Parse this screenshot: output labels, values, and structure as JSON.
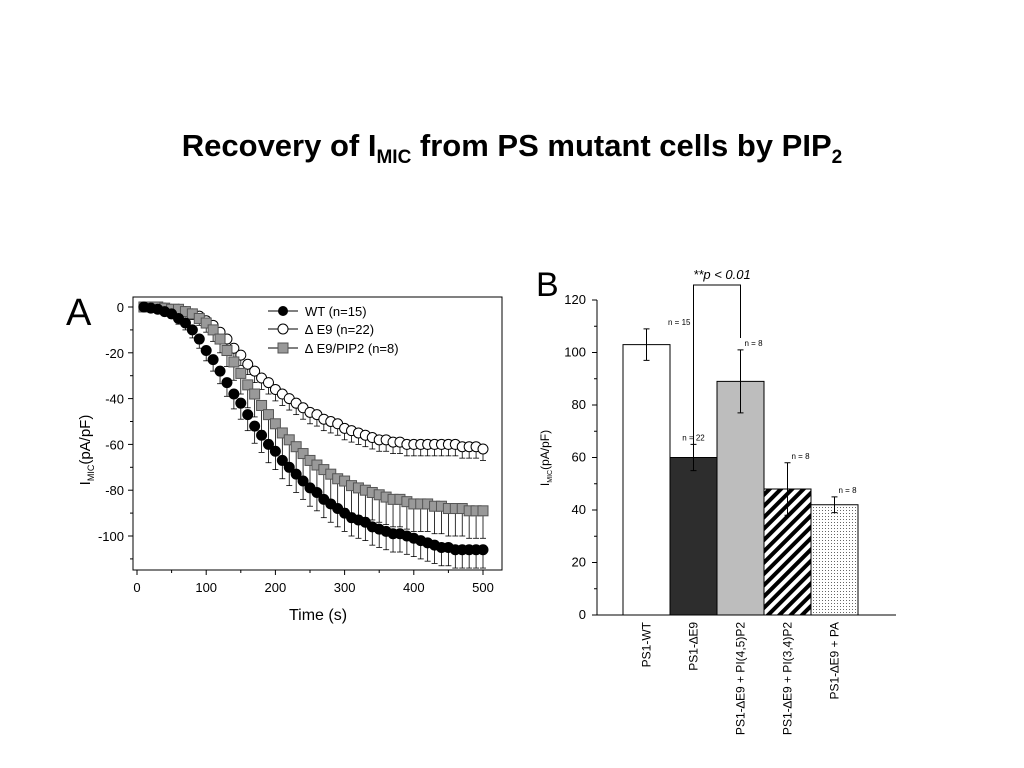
{
  "title": {
    "pre": "Recovery of I",
    "sub1": "MIC",
    "mid": " from PS mutant cells by PIP",
    "sub2": "2"
  },
  "chart_data": [
    {
      "type": "scatter",
      "panel": "A",
      "xlabel": "Time (s)",
      "ylabel_pre": "I",
      "ylabel_sub": "MIC",
      "ylabel_post": "(pA/pF)",
      "xlim": [
        0,
        500
      ],
      "ylim": [
        -112,
        2
      ],
      "xticks": [
        0,
        100,
        200,
        300,
        400,
        500
      ],
      "yticks": [
        0,
        -20,
        -40,
        -60,
        -80,
        -100
      ],
      "legend_position": "top-right",
      "series": [
        {
          "name": "WT (n=15)",
          "marker": "filled-circle",
          "color": "#000000",
          "x": [
            10,
            20,
            30,
            40,
            50,
            60,
            70,
            80,
            90,
            100,
            110,
            120,
            130,
            140,
            150,
            160,
            170,
            180,
            190,
            200,
            210,
            220,
            230,
            240,
            250,
            260,
            270,
            280,
            290,
            300,
            310,
            320,
            330,
            340,
            350,
            360,
            370,
            380,
            390,
            400,
            410,
            420,
            430,
            440,
            450,
            460,
            470,
            480,
            490,
            500
          ],
          "y": [
            0,
            -0.5,
            -1,
            -2,
            -3,
            -5,
            -7,
            -10,
            -14,
            -19,
            -23,
            -28,
            -33,
            -38,
            -42,
            -47,
            -52,
            -56,
            -60,
            -63,
            -67,
            -70,
            -73,
            -76,
            -79,
            -81,
            -84,
            -86,
            -88,
            -90,
            -92,
            -93,
            -94,
            -96,
            -97,
            -98,
            -99,
            -99,
            -100,
            -101,
            -102,
            -103,
            -104,
            -105,
            -105,
            -106,
            -106,
            -106,
            -106,
            -106
          ],
          "err": [
            0,
            0.5,
            1,
            1.5,
            2,
            2.5,
            3,
            3.5,
            4,
            4.5,
            5,
            5.5,
            6,
            6.5,
            7,
            7,
            7.5,
            7.5,
            8,
            8,
            8,
            8,
            8,
            8,
            8,
            8,
            8,
            8,
            8,
            8,
            8,
            8,
            8,
            8,
            8,
            8,
            8,
            8,
            8,
            8,
            8,
            8,
            8,
            8,
            8,
            8,
            8,
            8,
            8,
            8
          ]
        },
        {
          "name": "∆ E9 (n=22)",
          "marker": "open-circle",
          "color": "#000000",
          "x": [
            10,
            20,
            30,
            40,
            50,
            60,
            70,
            80,
            90,
            100,
            110,
            120,
            130,
            140,
            150,
            160,
            170,
            180,
            190,
            200,
            210,
            220,
            230,
            240,
            250,
            260,
            270,
            280,
            290,
            300,
            310,
            320,
            330,
            340,
            350,
            360,
            370,
            380,
            390,
            400,
            410,
            420,
            430,
            440,
            450,
            460,
            470,
            480,
            490,
            500
          ],
          "y": [
            0,
            0,
            -0.5,
            -0.5,
            -1,
            -1,
            -2,
            -3,
            -4,
            -6,
            -8,
            -11,
            -14,
            -18,
            -21,
            -25,
            -28,
            -31,
            -33,
            -36,
            -38,
            -40,
            -42,
            -44,
            -46,
            -47,
            -49,
            -50,
            -51,
            -53,
            -54,
            -55,
            -56,
            -57,
            -58,
            -58,
            -59,
            -59,
            -60,
            -60,
            -60,
            -60,
            -60,
            -60,
            -60,
            -60,
            -61,
            -61,
            -61,
            -62
          ],
          "err": [
            0,
            0,
            0.5,
            0.5,
            1,
            1,
            1.5,
            2,
            2.5,
            3,
            3,
            3.5,
            4,
            4,
            4.5,
            4.5,
            5,
            5,
            5,
            5,
            5,
            5,
            5,
            5,
            5,
            5,
            5,
            5,
            5,
            5,
            5,
            5,
            5,
            5,
            5,
            5,
            5,
            5,
            5,
            5,
            5,
            5,
            5,
            5,
            5,
            5,
            5,
            5,
            5,
            5
          ]
        },
        {
          "name": "∆ E9/PIP2 (n=8)",
          "marker": "filled-square",
          "color": "#999999",
          "x": [
            10,
            20,
            30,
            40,
            50,
            60,
            70,
            80,
            90,
            100,
            110,
            120,
            130,
            140,
            150,
            160,
            170,
            180,
            190,
            200,
            210,
            220,
            230,
            240,
            250,
            260,
            270,
            280,
            290,
            300,
            310,
            320,
            330,
            340,
            350,
            360,
            370,
            380,
            390,
            400,
            410,
            420,
            430,
            440,
            450,
            460,
            470,
            480,
            490,
            500
          ],
          "y": [
            0,
            0,
            0,
            -0.5,
            -1,
            -1,
            -2,
            -3,
            -5,
            -7,
            -10,
            -14,
            -19,
            -24,
            -29,
            -34,
            -38,
            -43,
            -47,
            -51,
            -55,
            -58,
            -61,
            -64,
            -67,
            -69,
            -71,
            -73,
            -75,
            -76,
            -78,
            -79,
            -80,
            -81,
            -82,
            -83,
            -84,
            -84,
            -85,
            -86,
            -86,
            -86,
            -87,
            -87,
            -88,
            -88,
            -88,
            -89,
            -89,
            -89
          ],
          "err": [
            0,
            0,
            0,
            0.5,
            1,
            1.5,
            2,
            2.5,
            3,
            4,
            5,
            6,
            7,
            8,
            9,
            10,
            10,
            11,
            11,
            12,
            12,
            12,
            12,
            12,
            12,
            12,
            12,
            12,
            12,
            12,
            12,
            12,
            12,
            12,
            12,
            12,
            12,
            12,
            12,
            12,
            12,
            12,
            12,
            12,
            12,
            12,
            12,
            12,
            12,
            12
          ]
        }
      ]
    },
    {
      "type": "bar",
      "panel": "B",
      "annotation": "**p < 0.01",
      "ylabel_pre": "I",
      "ylabel_sub": "MIC",
      "ylabel_post": "(pA/pF)",
      "ylim": [
        0,
        120
      ],
      "yticks": [
        0,
        20,
        40,
        60,
        80,
        100,
        120
      ],
      "categories": [
        "PS1-WT",
        "PS1-∆E9",
        "PS1-∆E9 + PI(4,5)P2",
        "PS1-∆E9 + PI(3,4)P2",
        "PS1-∆E9 + PA"
      ],
      "values": [
        103,
        60,
        89,
        48,
        42
      ],
      "errors": [
        6,
        5,
        12,
        10,
        3
      ],
      "n_labels": [
        "n = 15",
        "n = 22",
        "n = 8",
        "n = 8",
        "n = 8"
      ],
      "fills": [
        "white",
        "#2d2d2d",
        "#bdbdbd",
        "hatch",
        "dots"
      ],
      "bracket": [
        1,
        2
      ]
    }
  ]
}
